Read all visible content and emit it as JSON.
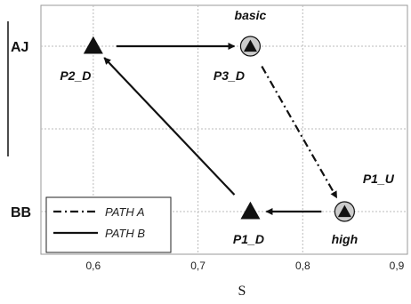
{
  "chart_data": {
    "type": "scatter",
    "xlabel": "S",
    "xlim": [
      0.55,
      0.9
    ],
    "x_ticks": [
      "0,6",
      "0,7",
      "0,8",
      "0,9"
    ],
    "y_categories": [
      "AJ",
      "BB"
    ],
    "grid": true,
    "points": [
      {
        "name": "P2_D",
        "x": 0.6,
        "y": "AJ",
        "marker": "triangle",
        "labels": [
          "P2_D"
        ]
      },
      {
        "name": "P3_D",
        "x": 0.75,
        "y": "AJ",
        "marker": "circled-triangle",
        "labels": [
          "basic",
          "P3_D"
        ]
      },
      {
        "name": "P1_U",
        "x": 0.84,
        "y": "BB",
        "marker": "circled-triangle",
        "labels": [
          "P1_U",
          "high"
        ]
      },
      {
        "name": "P1_D",
        "x": 0.75,
        "y": "BB",
        "marker": "triangle",
        "labels": [
          "P1_D"
        ]
      }
    ],
    "paths": [
      {
        "name": "PATH A",
        "style": "dash-dot",
        "segments": [
          [
            "P3_D",
            "P1_U"
          ]
        ]
      },
      {
        "name": "PATH B",
        "style": "solid",
        "segments": [
          [
            "P2_D",
            "P3_D"
          ],
          [
            "P1_U",
            "P1_D"
          ],
          [
            "P1_D",
            "P2_D"
          ]
        ]
      }
    ],
    "legend": {
      "position": "bottom-left",
      "entries": [
        "PATH A",
        "PATH B"
      ]
    },
    "colors": {
      "marker": "#111111",
      "circle": "#cccccc",
      "grid": "#bbbbbb"
    }
  }
}
